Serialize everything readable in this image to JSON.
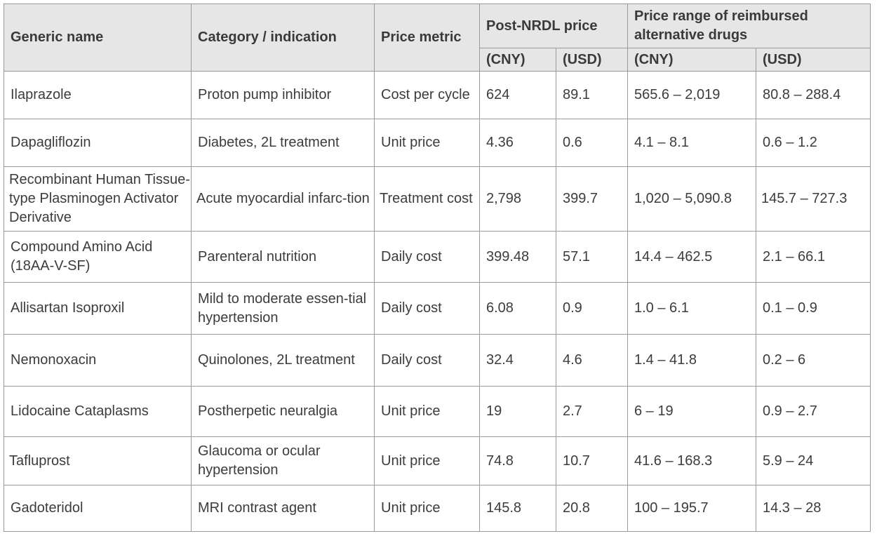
{
  "header": {
    "generic_name": "Generic name",
    "category": "Category / indication",
    "price_metric": "Price metric",
    "post_nrdl": "Post-NRDL price",
    "alt_range": "Price range of reimbursed alternative drugs",
    "cny": "(CNY)",
    "usd": "(USD)"
  },
  "rows": [
    {
      "name": "Ilaprazole",
      "category": "Proton pump inhibitor",
      "metric": "Cost per cycle",
      "post_cny": "624",
      "post_usd": "89.1",
      "alt_cny": "565.6 – 2,019",
      "alt_usd": "80.8 – 288.4"
    },
    {
      "name": "Dapagliflozin",
      "category": "Diabetes, 2L treatment",
      "metric": "Unit price",
      "post_cny": "4.36",
      "post_usd": "0.6",
      "alt_cny": "4.1 – 8.1",
      "alt_usd": "0.6 – 1.2"
    },
    {
      "name": "Recombinant Human Tissue-type Plasminogen Activator Derivative",
      "category": "Acute myocardial infarc-tion",
      "metric": "Treatment cost",
      "post_cny": "2,798",
      "post_usd": "399.7",
      "alt_cny": "1,020 – 5,090.8",
      "alt_usd": "145.7 – 727.3"
    },
    {
      "name": "Compound Amino Acid (18AA-V-SF)",
      "category": "Parenteral nutrition",
      "metric": "Daily cost",
      "post_cny": "399.48",
      "post_usd": "57.1",
      "alt_cny": "14.4 – 462.5",
      "alt_usd": "2.1 – 66.1"
    },
    {
      "name": "Allisartan Isoproxil",
      "category": "Mild to moderate essen-tial hypertension",
      "metric": "Daily cost",
      "post_cny": "6.08",
      "post_usd": "0.9",
      "alt_cny": "1.0 – 6.1",
      "alt_usd": "0.1 – 0.9"
    },
    {
      "name": "Nemonoxacin",
      "category": "Quinolones, 2L treatment",
      "metric": "Daily cost",
      "post_cny": "32.4",
      "post_usd": "4.6",
      "alt_cny": "1.4 – 41.8",
      "alt_usd": "0.2 – 6"
    },
    {
      "name": "Lidocaine Cataplasms",
      "category": "Postherpetic neuralgia",
      "metric": "Unit price",
      "post_cny": "19",
      "post_usd": "2.7",
      "alt_cny": "6 – 19",
      "alt_usd": "0.9 – 2.7"
    },
    {
      "name": "Tafluprost",
      "category": "Glaucoma or ocular hypertension",
      "metric": "Unit price",
      "post_cny": "74.8",
      "post_usd": "10.7",
      "alt_cny": "41.6 – 168.3",
      "alt_usd": "5.9 – 24"
    },
    {
      "name": "Gadoteridol",
      "category": "MRI contrast agent",
      "metric": "Unit price",
      "post_cny": "145.8",
      "post_usd": "20.8",
      "alt_cny": "100 – 195.7",
      "alt_usd": "14.3 – 28"
    }
  ]
}
